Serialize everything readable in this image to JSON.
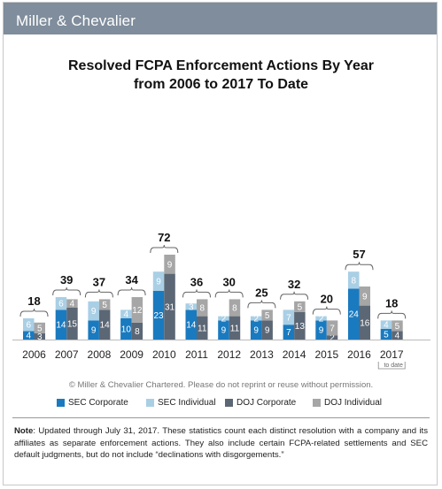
{
  "brand": {
    "name": "Miller & Chevalier"
  },
  "title": {
    "line1": "Resolved FCPA Enforcement Actions By Year",
    "line2": "from 2006 to 2017 To Date"
  },
  "copyright": "© Miller & Chevalier Chartered. Please do not reprint or reuse without permission.",
  "legend": [
    {
      "label": "SEC Corporate",
      "color": "#1a7abf"
    },
    {
      "label": "SEC Individual",
      "color": "#a9cfe5"
    },
    {
      "label": "DOJ Corporate",
      "color": "#5c6775"
    },
    {
      "label": "DOJ Individual",
      "color": "#a6a6a6"
    }
  ],
  "note": {
    "label": "Note",
    "text": ": Updated through July 31, 2017. These statistics count each distinct resolution with a company and its affiliates as separate enforcement actions. They also include certain FCPA-related settlements and SEC default judgments, but do not include “declinations with disgorgements.”"
  },
  "chart_data": {
    "type": "bar",
    "stacked": "two stacks per year (SEC, DOJ) with year total above",
    "categories": [
      "2006",
      "2007",
      "2008",
      "2009",
      "2010",
      "2011",
      "2012",
      "2013",
      "2014",
      "2015",
      "2016",
      "2017"
    ],
    "category_sublabels": {
      "2017": "to date"
    },
    "series": [
      {
        "name": "SEC Corporate",
        "stack": "SEC",
        "color": "#1a7abf",
        "values": [
          4,
          14,
          9,
          10,
          23,
          14,
          9,
          9,
          7,
          9,
          24,
          5
        ]
      },
      {
        "name": "SEC Individual",
        "stack": "SEC",
        "color": "#a9cfe5",
        "values": [
          6,
          6,
          9,
          4,
          9,
          3,
          2,
          2,
          7,
          2,
          8,
          4
        ]
      },
      {
        "name": "DOJ Corporate",
        "stack": "DOJ",
        "color": "#5c6775",
        "values": [
          3,
          15,
          14,
          8,
          31,
          11,
          11,
          9,
          13,
          2,
          16,
          4
        ]
      },
      {
        "name": "DOJ Individual",
        "stack": "DOJ",
        "color": "#a6a6a6",
        "values": [
          5,
          4,
          5,
          12,
          9,
          8,
          8,
          5,
          5,
          7,
          9,
          5
        ]
      }
    ],
    "totals": [
      18,
      39,
      37,
      34,
      72,
      36,
      30,
      25,
      32,
      20,
      57,
      18
    ],
    "legend_position": "bottom",
    "grid": false
  }
}
